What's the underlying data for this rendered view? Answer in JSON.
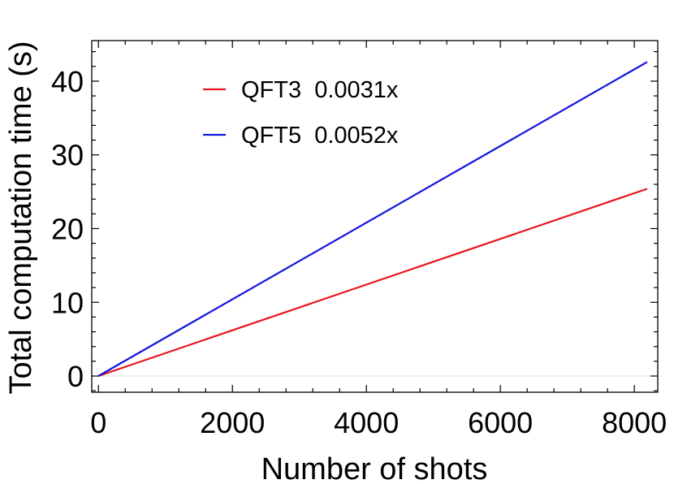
{
  "chart_data": {
    "type": "line",
    "xlabel": "Number of shots",
    "ylabel": "Total computation time (s)",
    "xlim": [
      -100,
      8350
    ],
    "ylim": [
      -2.2,
      45.5
    ],
    "xticks": [
      0,
      2000,
      4000,
      6000,
      8000
    ],
    "xtick_labels": [
      "0",
      "2000",
      "4000",
      "6000",
      "8000"
    ],
    "yticks": [
      0,
      10,
      20,
      30,
      40
    ],
    "ytick_labels": [
      "0",
      "10",
      "20",
      "30",
      "40"
    ],
    "grid": false,
    "legend_position": "top-left",
    "series": [
      {
        "name": "QFT3  0.0031x",
        "color": "#e8141c",
        "x": [
          0,
          8192
        ],
        "y": [
          0,
          25.4
        ]
      },
      {
        "name": "QFT5  0.0052x",
        "color": "#1414e0",
        "x": [
          0,
          8192
        ],
        "y": [
          0,
          42.6
        ]
      }
    ]
  }
}
